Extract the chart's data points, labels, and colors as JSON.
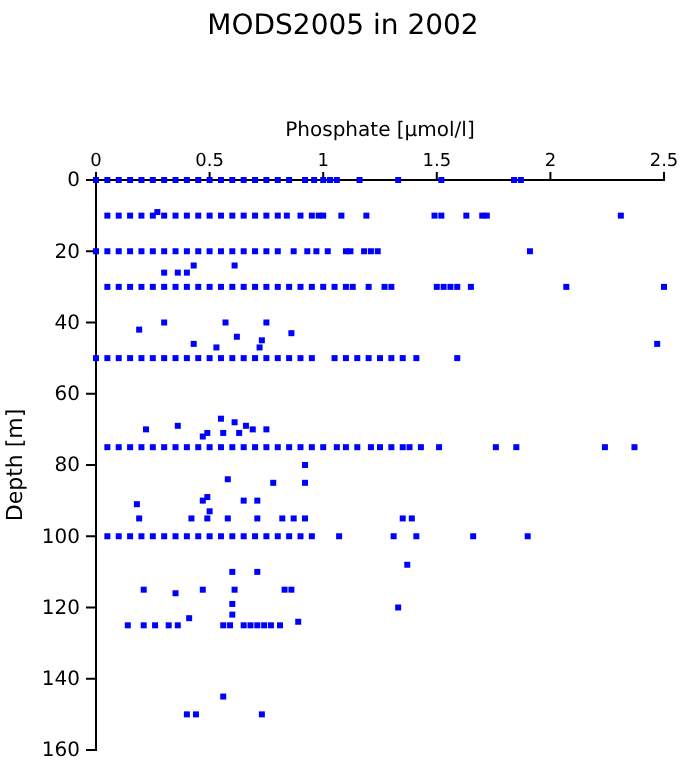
{
  "chart_data": {
    "type": "scatter",
    "title": "MODS2005 in 2002",
    "xlabel": "Phosphate [µmol/l]",
    "ylabel": "Depth [m]",
    "xlim": [
      0,
      2.5
    ],
    "ylim": [
      160,
      0
    ],
    "xticks": [
      0,
      0.5,
      1,
      1.5,
      2,
      2.5
    ],
    "yticks": [
      0,
      20,
      40,
      60,
      80,
      100,
      120,
      140,
      160
    ],
    "marker": "square",
    "series": [
      {
        "color": "#0000ff",
        "x": [
          0,
          0.05,
          0.1,
          0.15,
          0.2,
          0.25,
          0.3,
          0.35,
          0.4,
          0.45,
          0.5,
          0.55,
          0.6,
          0.65,
          0.7,
          0.75,
          0.8,
          0.85,
          0.92,
          0.96,
          1.0,
          1.03,
          1.06,
          1.16,
          1.33,
          1.52,
          1.84,
          1.87
        ],
        "values": [
          0,
          0,
          0,
          0,
          0,
          0,
          0,
          0,
          0,
          0,
          0,
          0,
          0,
          0,
          0,
          0,
          0,
          0,
          0,
          0,
          0,
          0,
          0,
          0,
          0,
          0,
          0,
          0
        ]
      },
      {
        "color": "#0000ff",
        "x": [
          0.05,
          0.1,
          0.15,
          0.2,
          0.25,
          0.3,
          0.35,
          0.4,
          0.45,
          0.5,
          0.55,
          0.6,
          0.65,
          0.7,
          0.75,
          0.8,
          0.84,
          0.9,
          0.95,
          0.98,
          1.0,
          1.08,
          1.19,
          1.49,
          1.52,
          1.63,
          1.7,
          1.72,
          2.31,
          0.27
        ],
        "values": [
          10,
          10,
          10,
          10,
          10,
          10,
          10,
          10,
          10,
          10,
          10,
          10,
          10,
          10,
          10,
          10,
          10,
          10,
          10,
          10,
          10,
          10,
          10,
          10,
          10,
          10,
          10,
          10,
          10,
          9
        ]
      },
      {
        "color": "#0000ff",
        "x": [
          0,
          0.05,
          0.1,
          0.15,
          0.2,
          0.25,
          0.3,
          0.35,
          0.4,
          0.45,
          0.5,
          0.55,
          0.6,
          0.65,
          0.7,
          0.75,
          0.8,
          0.87,
          0.93,
          0.97,
          1.02,
          1.1,
          1.12,
          1.18,
          1.21,
          1.24,
          1.91
        ],
        "values": [
          20,
          20,
          20,
          20,
          20,
          20,
          20,
          20,
          20,
          20,
          20,
          20,
          20,
          20,
          20,
          20,
          20,
          20,
          20,
          20,
          20,
          20,
          20,
          20,
          20,
          20,
          20
        ]
      },
      {
        "color": "#0000ff",
        "x": [
          0.43,
          0.61,
          0.3,
          0.36,
          0.4
        ],
        "values": [
          24,
          24,
          26,
          26,
          26
        ]
      },
      {
        "color": "#0000ff",
        "x": [
          0.05,
          0.1,
          0.15,
          0.2,
          0.25,
          0.3,
          0.35,
          0.4,
          0.45,
          0.5,
          0.55,
          0.6,
          0.65,
          0.7,
          0.75,
          0.8,
          0.85,
          0.9,
          0.95,
          1.0,
          1.05,
          1.1,
          1.13,
          1.2,
          1.27,
          1.3,
          1.5,
          1.53,
          1.56,
          1.59,
          1.65,
          2.07,
          2.5
        ],
        "values": [
          30,
          30,
          30,
          30,
          30,
          30,
          30,
          30,
          30,
          30,
          30,
          30,
          30,
          30,
          30,
          30,
          30,
          30,
          30,
          30,
          30,
          30,
          30,
          30,
          30,
          30,
          30,
          30,
          30,
          30,
          30,
          30,
          30
        ]
      },
      {
        "color": "#0000ff",
        "x": [
          0.3,
          0.57,
          0.75,
          0.19,
          0.86,
          0.62,
          0.73,
          0.43,
          0.53,
          0.72,
          2.47
        ],
        "values": [
          40,
          40,
          40,
          42,
          43,
          44,
          45,
          46,
          47,
          47,
          46
        ]
      },
      {
        "color": "#0000ff",
        "x": [
          0,
          0.05,
          0.1,
          0.15,
          0.2,
          0.25,
          0.3,
          0.35,
          0.4,
          0.45,
          0.5,
          0.55,
          0.6,
          0.65,
          0.7,
          0.75,
          0.8,
          0.85,
          0.9,
          0.95,
          1.05,
          1.1,
          1.15,
          1.2,
          1.25,
          1.3,
          1.35,
          1.41,
          1.59
        ],
        "values": [
          50,
          50,
          50,
          50,
          50,
          50,
          50,
          50,
          50,
          50,
          50,
          50,
          50,
          50,
          50,
          50,
          50,
          50,
          50,
          50,
          50,
          50,
          50,
          50,
          50,
          50,
          50,
          50,
          50
        ]
      },
      {
        "color": "#0000ff",
        "x": [
          0.55,
          0.61,
          0.36,
          0.66,
          0.22,
          0.69,
          0.75,
          0.56,
          0.63,
          0.49,
          0.47
        ],
        "values": [
          67,
          68,
          69,
          69,
          70,
          70,
          70,
          71,
          71,
          71,
          72
        ]
      },
      {
        "color": "#0000ff",
        "x": [
          0.05,
          0.1,
          0.15,
          0.2,
          0.25,
          0.3,
          0.35,
          0.4,
          0.45,
          0.5,
          0.55,
          0.6,
          0.65,
          0.7,
          0.75,
          0.8,
          0.85,
          0.9,
          0.95,
          1.0,
          1.06,
          1.1,
          1.15,
          1.21,
          1.25,
          1.3,
          1.35,
          1.38,
          1.43,
          1.51,
          1.76,
          1.85,
          2.24,
          2.37
        ],
        "values": [
          75,
          75,
          75,
          75,
          75,
          75,
          75,
          75,
          75,
          75,
          75,
          75,
          75,
          75,
          75,
          75,
          75,
          75,
          75,
          75,
          75,
          75,
          75,
          75,
          75,
          75,
          75,
          75,
          75,
          75,
          75,
          75,
          75,
          75
        ]
      },
      {
        "color": "#0000ff",
        "x": [
          0.92,
          0.58,
          0.78,
          0.92,
          0.49,
          0.47,
          0.65,
          0.71,
          0.18,
          0.5,
          0.19,
          0.42,
          0.49,
          0.58,
          0.71,
          0.82,
          0.87,
          0.92,
          1.35,
          1.39
        ],
        "values": [
          80,
          84,
          85,
          85,
          89,
          90,
          90,
          90,
          91,
          93,
          95,
          95,
          95,
          95,
          95,
          95,
          95,
          95,
          95,
          95
        ]
      },
      {
        "color": "#0000ff",
        "x": [
          0.05,
          0.1,
          0.15,
          0.2,
          0.25,
          0.3,
          0.35,
          0.4,
          0.45,
          0.5,
          0.55,
          0.6,
          0.65,
          0.7,
          0.75,
          0.8,
          0.85,
          0.9,
          0.95,
          1.07,
          1.31,
          1.41,
          1.66,
          1.9
        ],
        "values": [
          100,
          100,
          100,
          100,
          100,
          100,
          100,
          100,
          100,
          100,
          100,
          100,
          100,
          100,
          100,
          100,
          100,
          100,
          100,
          100,
          100,
          100,
          100,
          100
        ]
      },
      {
        "color": "#0000ff",
        "x": [
          1.37,
          0.6,
          0.71,
          0.21,
          0.47,
          0.61,
          0.83,
          0.86,
          0.35,
          0.6,
          0.6,
          1.33,
          0.41,
          0.89
        ],
        "values": [
          108,
          110,
          110,
          115,
          115,
          115,
          115,
          115,
          116,
          119,
          122,
          120,
          123,
          124
        ]
      },
      {
        "color": "#0000ff",
        "x": [
          0.14,
          0.21,
          0.26,
          0.32,
          0.36,
          0.56,
          0.59,
          0.65,
          0.68,
          0.71,
          0.74,
          0.77,
          0.81,
          0.56,
          0.4,
          0.44,
          0.73
        ],
        "values": [
          125,
          125,
          125,
          125,
          125,
          125,
          125,
          125,
          125,
          125,
          125,
          125,
          125,
          145,
          150,
          150,
          150
        ]
      }
    ]
  }
}
